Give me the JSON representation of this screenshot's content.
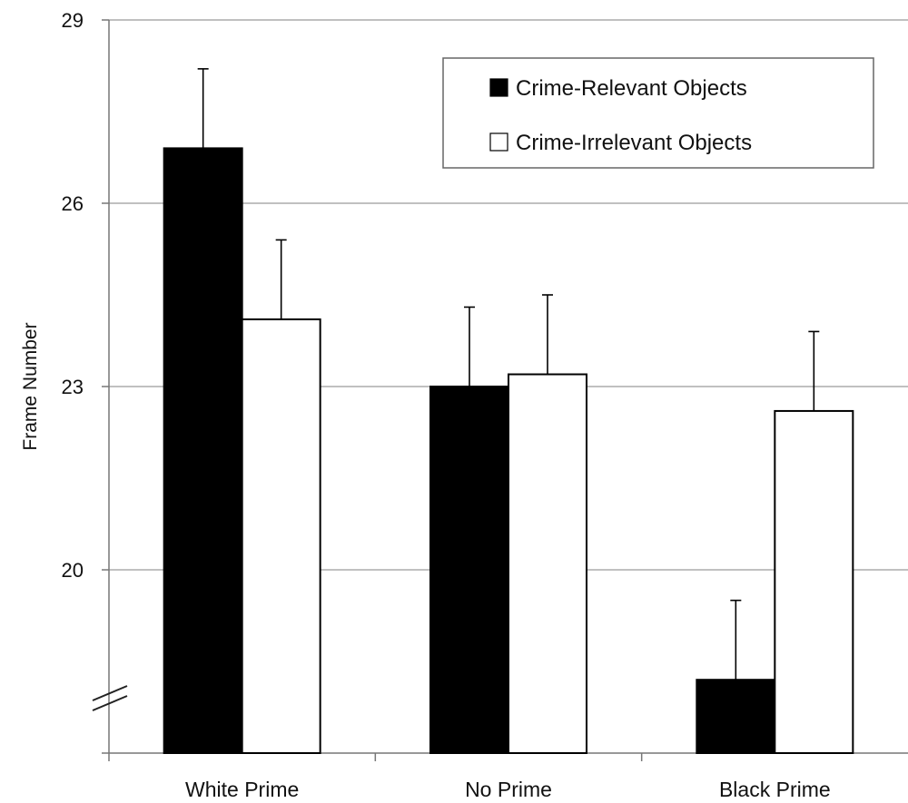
{
  "chart_data": {
    "type": "bar",
    "title": "",
    "xlabel": "",
    "ylabel": "Frame Number",
    "ylim": [
      17,
      29
    ],
    "yticks": [
      20,
      23,
      26,
      29
    ],
    "axis_break": true,
    "grid": true,
    "legend_position": "top-right",
    "categories": [
      "White Prime",
      "No Prime",
      "Black Prime"
    ],
    "series": [
      {
        "name": "Crime-Relevant Objects",
        "color": "#000000",
        "values": [
          26.9,
          23.0,
          18.2
        ],
        "error_upper": [
          28.2,
          24.3,
          19.5
        ]
      },
      {
        "name": "Crime-Irrelevant Objects",
        "color": "#ffffff",
        "values": [
          24.1,
          23.2,
          22.6
        ],
        "error_upper": [
          25.4,
          24.5,
          23.9
        ]
      }
    ]
  }
}
